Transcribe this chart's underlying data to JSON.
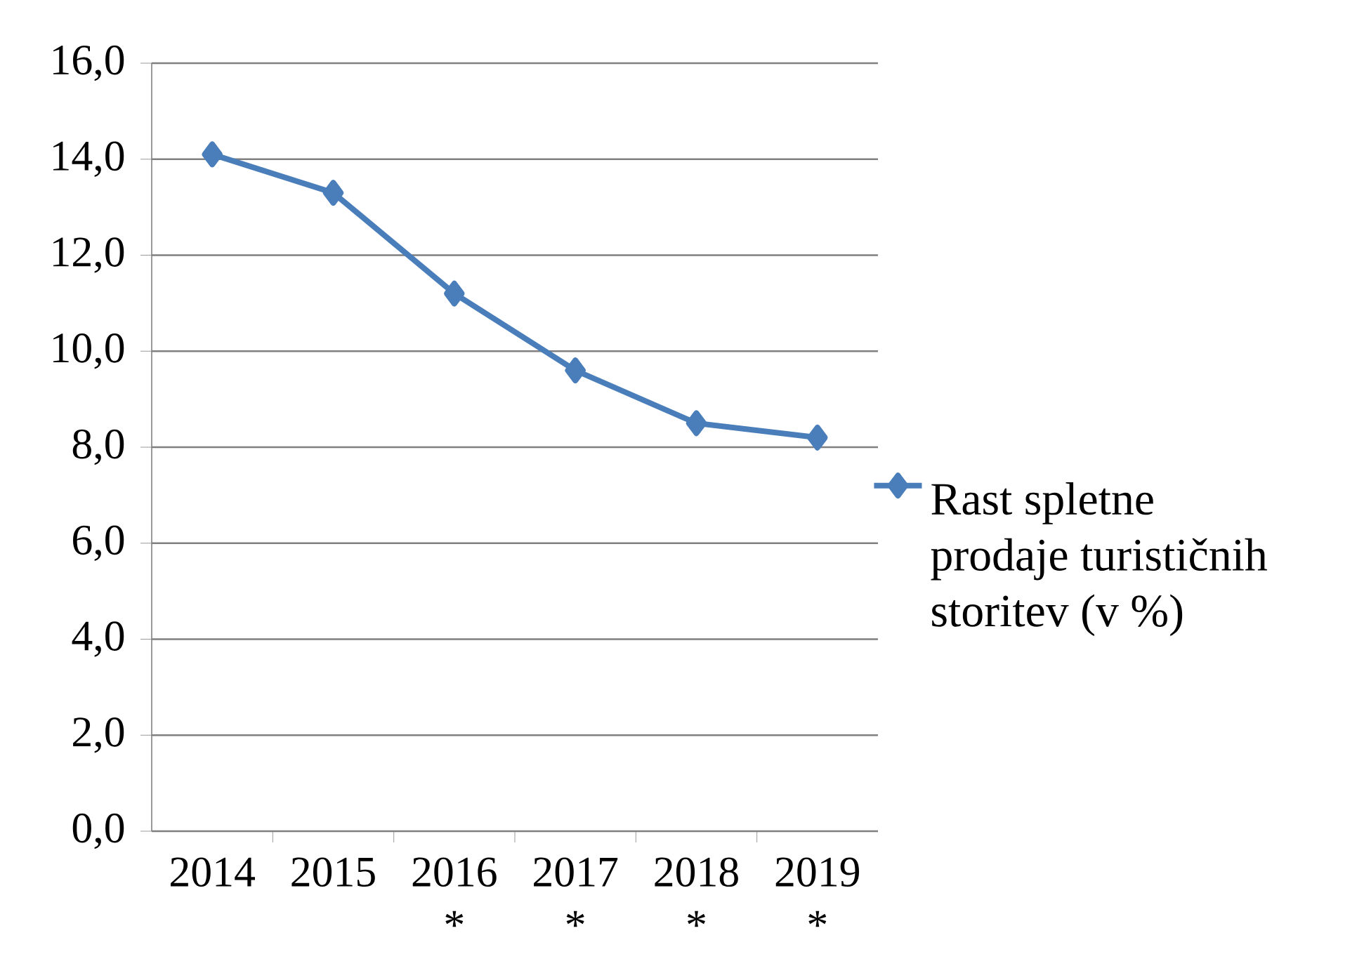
{
  "chart_data": {
    "type": "line",
    "categories": [
      "2014",
      "2015",
      "2016 *",
      "2017 *",
      "2018 *",
      "2019 *"
    ],
    "series": [
      {
        "name": "Rast spletne prodaje turističnih storitev (v %)",
        "color": "#4a7ebb",
        "values": [
          14.1,
          13.3,
          11.2,
          9.6,
          8.5,
          8.2
        ]
      }
    ],
    "ylim": [
      0,
      16
    ],
    "yticks": [
      {
        "value": 0,
        "label": "0,0"
      },
      {
        "value": 2,
        "label": "2,0"
      },
      {
        "value": 4,
        "label": "4,0"
      },
      {
        "value": 6,
        "label": "6,0"
      },
      {
        "value": 8,
        "label": "8,0"
      },
      {
        "value": 10,
        "label": "10,0"
      },
      {
        "value": 12,
        "label": "12,0"
      },
      {
        "value": 14,
        "label": "14,0"
      },
      {
        "value": 16,
        "label": "16,0"
      }
    ],
    "grid": "y",
    "legend": "right",
    "marker": "diamond",
    "line_style": "solid"
  }
}
